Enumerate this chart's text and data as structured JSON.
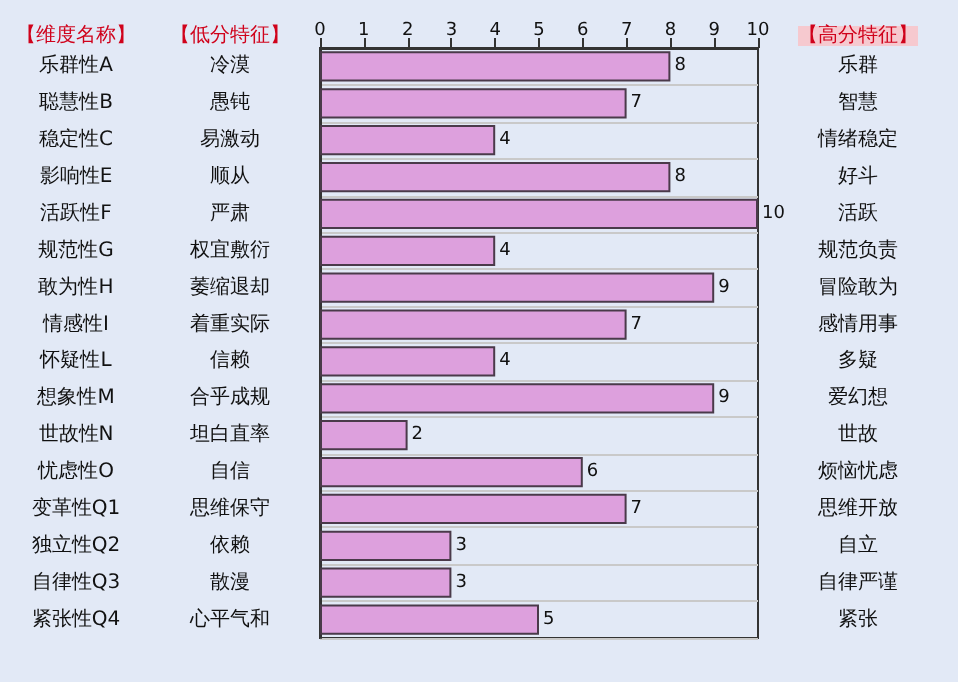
{
  "chart_data": {
    "type": "bar",
    "orientation": "horizontal",
    "ylabel": "【维度名称】",
    "y2label": "【高分特征】",
    "categories": [
      "乐群性A",
      "聪慧性B",
      "稳定性C",
      "影响性E",
      "活跃性F",
      "规范性G",
      "敢为性H",
      "情感性I",
      "怀疑性L",
      "想象性M",
      "世故性N",
      "忧虑性O",
      "变革性Q1",
      "独立性Q2",
      "自律性Q3",
      "紧张性Q4"
    ],
    "values": [
      8,
      7,
      4,
      8,
      10,
      4,
      9,
      7,
      4,
      9,
      2,
      6,
      7,
      3,
      3,
      5
    ],
    "color": "#dda0dd",
    "data_labels": true,
    "grid": "y",
    "x2lim": [
      0,
      10
    ],
    "x2ticks": [
      0,
      1,
      2,
      3,
      4,
      5,
      6,
      7,
      8,
      9,
      10
    ],
    "annotations": [
      "【低分特征】",
      "冷漠",
      "愚钝",
      "易激动",
      "顺从",
      "严肃",
      "权宜敷衍",
      "萎缩退却",
      "着重实际",
      "信赖",
      "合乎成规",
      "坦白直率",
      "自信",
      "思维保守",
      "依赖",
      "散漫",
      "心平气和",
      "乐群",
      "智慧",
      "情绪稳定",
      "好斗",
      "活跃",
      "规范负责",
      "冒险敢为",
      "感情用事",
      "多疑",
      "爱幻想",
      "世故",
      "烦恼忧虑",
      "思维开放",
      "自立",
      "自律严谨",
      "紧张"
    ]
  }
}
